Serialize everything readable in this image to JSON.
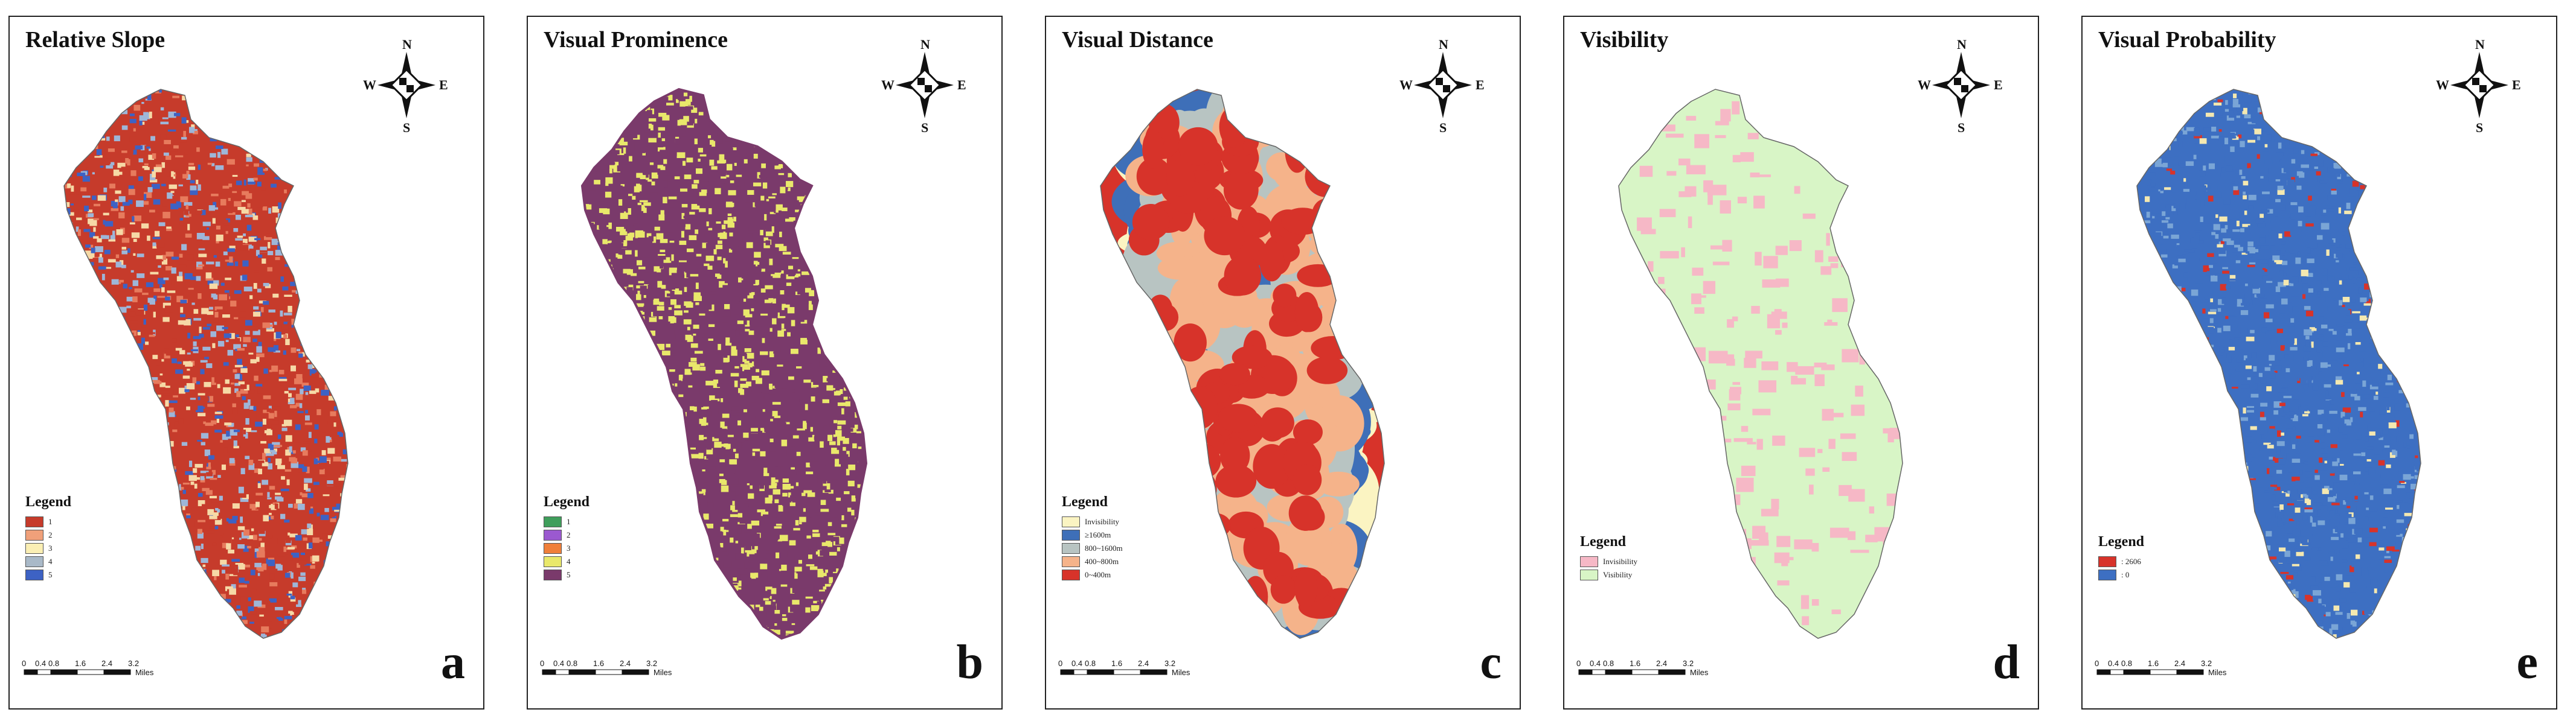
{
  "panels": [
    {
      "title": "Relative Slope",
      "letter": "a",
      "legend_title": "Legend",
      "legend_items": [
        {
          "label": "1",
          "color": "#c63b2b"
        },
        {
          "label": "2",
          "color": "#f0a07a"
        },
        {
          "label": "3",
          "color": "#fbefb4"
        },
        {
          "label": "4",
          "color": "#a9b9c8"
        },
        {
          "label": "5",
          "color": "#3d62c4"
        }
      ],
      "map_colors": [
        "#c63b2b",
        "#e77b5d",
        "#f6d9a6",
        "#9eb6d8",
        "#3d62c4"
      ]
    },
    {
      "title": "Visual Prominence",
      "letter": "b",
      "legend_title": "Legend",
      "legend_items": [
        {
          "label": "1",
          "color": "#3f9e5b"
        },
        {
          "label": "2",
          "color": "#9b59d0"
        },
        {
          "label": "3",
          "color": "#f07f3a"
        },
        {
          "label": "4",
          "color": "#e9e86b"
        },
        {
          "label": "5",
          "color": "#7a3a6b"
        }
      ],
      "map_colors": [
        "#7a3a6b",
        "#e9e86b"
      ]
    },
    {
      "title": "Visual Distance",
      "letter": "c",
      "legend_title": "Legend",
      "legend_items": [
        {
          "label": "Invisibility",
          "color": "#fbf4c2"
        },
        {
          "label": "≥1600m",
          "color": "#3e6fb8"
        },
        {
          "label": "800~1600m",
          "color": "#b8c4c2"
        },
        {
          "label": "400~800m",
          "color": "#f5b38a"
        },
        {
          "label": "0~400m",
          "color": "#d7332a"
        }
      ],
      "map_colors": [
        "#d7332a",
        "#f5b38a",
        "#b8c4c2",
        "#3e6fb8",
        "#fbf4c2"
      ]
    },
    {
      "title": "Visibility",
      "letter": "d",
      "legend_title": "Legend",
      "legend_items": [
        {
          "label": "Invisibility",
          "color": "#f6b8c6"
        },
        {
          "label": "Visibility",
          "color": "#d8f5c6"
        }
      ],
      "map_colors": [
        "#d8f5c6",
        "#f6b8c6"
      ]
    },
    {
      "title": "Visual Probability",
      "letter": "e",
      "legend_title": "Legend",
      "legend_items": [
        {
          "label": ": 2606",
          "color": "#d7332a"
        },
        {
          "label": ": 0",
          "color": "#3d6fc2"
        }
      ],
      "map_colors": [
        "#3d6fc2",
        "#7aa5d6",
        "#f4e8b0",
        "#d7332a"
      ]
    }
  ],
  "compass": {
    "n": "N",
    "s": "S",
    "e": "E",
    "w": "W"
  },
  "scale": {
    "ticks": [
      "0",
      "0.4",
      "0.8",
      "1.6",
      "2.4",
      "3.2"
    ],
    "unit": "Miles"
  }
}
